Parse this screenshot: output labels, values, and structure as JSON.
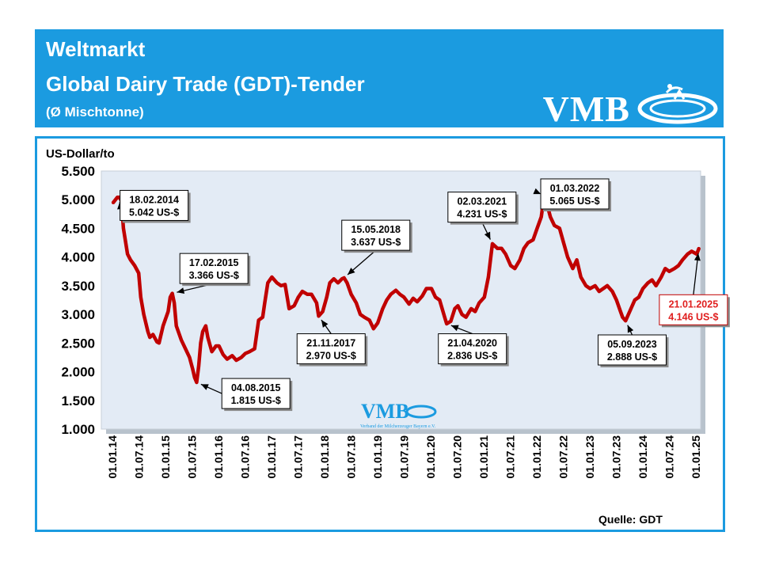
{
  "header": {
    "title_line1": "Weltmarkt",
    "title_line2": "Global Dairy Trade (GDT)-Tender",
    "subtitle": "(Ø Mischtonne)",
    "logo_text": "VMB",
    "bg_color": "#1b9be0"
  },
  "watermark": {
    "logo_text": "VMB",
    "caption": "Verband der Milcherzeuger Bayern e.V."
  },
  "source_note": "Quelle: GDT",
  "chart_data": {
    "type": "line",
    "title": "",
    "ylabel": "US-Dollar/to",
    "xlabel": "",
    "ylim": [
      1000,
      5500
    ],
    "xlim": [
      "2014-01-01",
      "2025-01-01"
    ],
    "grid": false,
    "line_color": "#c00000",
    "plot_bg": "#e3ebf5",
    "y_ticks": [
      "1.000",
      "1.500",
      "2.000",
      "2.500",
      "3.000",
      "3.500",
      "4.000",
      "4.500",
      "5.000",
      "5.500"
    ],
    "x_ticks": [
      "01.01.14",
      "01.07.14",
      "01.01.15",
      "01.07.15",
      "01.01.16",
      "01.07.16",
      "01.01.17",
      "01.07.17",
      "01.01.18",
      "01.07.18",
      "01.01.19",
      "01.07.19",
      "01.01.20",
      "01.07.20",
      "01.01.21",
      "01.07.21",
      "01.01.22",
      "01.07.22",
      "01.01.23",
      "01.07.23",
      "01.01.24",
      "01.07.24",
      "01.01.25"
    ],
    "series": [
      {
        "points": [
          [
            "2014-01-07",
            4950
          ],
          [
            "2014-02-04",
            5040
          ],
          [
            "2014-02-18",
            5042
          ],
          [
            "2014-03-04",
            4980
          ],
          [
            "2014-03-18",
            4500
          ],
          [
            "2014-04-15",
            4050
          ],
          [
            "2014-05-06",
            3950
          ],
          [
            "2014-06-03",
            3850
          ],
          [
            "2014-07-01",
            3720
          ],
          [
            "2014-07-15",
            3300
          ],
          [
            "2014-08-05",
            3000
          ],
          [
            "2014-09-02",
            2700
          ],
          [
            "2014-09-16",
            2600
          ],
          [
            "2014-10-07",
            2650
          ],
          [
            "2014-11-04",
            2520
          ],
          [
            "2014-11-18",
            2500
          ],
          [
            "2014-12-16",
            2800
          ],
          [
            "2015-01-20",
            3050
          ],
          [
            "2015-02-03",
            3300
          ],
          [
            "2015-02-17",
            3366
          ],
          [
            "2015-03-03",
            3200
          ],
          [
            "2015-03-17",
            2800
          ],
          [
            "2015-04-21",
            2550
          ],
          [
            "2015-05-19",
            2400
          ],
          [
            "2015-06-16",
            2250
          ],
          [
            "2015-07-07",
            2050
          ],
          [
            "2015-07-21",
            1900
          ],
          [
            "2015-08-04",
            1815
          ],
          [
            "2015-08-18",
            2100
          ],
          [
            "2015-09-01",
            2500
          ],
          [
            "2015-09-15",
            2700
          ],
          [
            "2015-10-06",
            2800
          ],
          [
            "2015-10-20",
            2600
          ],
          [
            "2015-11-17",
            2350
          ],
          [
            "2015-12-15",
            2450
          ],
          [
            "2016-01-05",
            2450
          ],
          [
            "2016-02-02",
            2300
          ],
          [
            "2016-03-01",
            2220
          ],
          [
            "2016-04-05",
            2280
          ],
          [
            "2016-05-03",
            2200
          ],
          [
            "2016-06-07",
            2250
          ],
          [
            "2016-07-05",
            2320
          ],
          [
            "2016-08-02",
            2350
          ],
          [
            "2016-09-06",
            2400
          ],
          [
            "2016-10-04",
            2900
          ],
          [
            "2016-11-01",
            2950
          ],
          [
            "2016-11-15",
            3200
          ],
          [
            "2016-12-06",
            3550
          ],
          [
            "2017-01-03",
            3650
          ],
          [
            "2017-02-07",
            3550
          ],
          [
            "2017-03-07",
            3500
          ],
          [
            "2017-04-04",
            3520
          ],
          [
            "2017-05-02",
            3100
          ],
          [
            "2017-06-06",
            3150
          ],
          [
            "2017-07-04",
            3300
          ],
          [
            "2017-08-01",
            3400
          ],
          [
            "2017-09-05",
            3350
          ],
          [
            "2017-10-03",
            3350
          ],
          [
            "2017-11-07",
            3200
          ],
          [
            "2017-11-21",
            2970
          ],
          [
            "2017-12-19",
            3050
          ],
          [
            "2018-01-16",
            3300
          ],
          [
            "2018-02-06",
            3550
          ],
          [
            "2018-03-06",
            3620
          ],
          [
            "2018-04-03",
            3550
          ],
          [
            "2018-05-01",
            3620
          ],
          [
            "2018-05-15",
            3637
          ],
          [
            "2018-06-05",
            3550
          ],
          [
            "2018-07-03",
            3350
          ],
          [
            "2018-08-07",
            3200
          ],
          [
            "2018-09-04",
            3000
          ],
          [
            "2018-10-02",
            2950
          ],
          [
            "2018-11-06",
            2900
          ],
          [
            "2018-12-04",
            2750
          ],
          [
            "2019-01-02",
            2850
          ],
          [
            "2019-02-05",
            3100
          ],
          [
            "2019-03-05",
            3250
          ],
          [
            "2019-04-02",
            3350
          ],
          [
            "2019-05-07",
            3420
          ],
          [
            "2019-06-04",
            3350
          ],
          [
            "2019-07-02",
            3300
          ],
          [
            "2019-08-06",
            3180
          ],
          [
            "2019-09-03",
            3280
          ],
          [
            "2019-10-01",
            3220
          ],
          [
            "2019-11-05",
            3320
          ],
          [
            "2019-12-03",
            3450
          ],
          [
            "2020-01-07",
            3450
          ],
          [
            "2020-02-04",
            3300
          ],
          [
            "2020-03-03",
            3250
          ],
          [
            "2020-04-07",
            2950
          ],
          [
            "2020-04-21",
            2836
          ],
          [
            "2020-05-19",
            2880
          ],
          [
            "2020-06-16",
            3100
          ],
          [
            "2020-07-07",
            3150
          ],
          [
            "2020-08-04",
            3000
          ],
          [
            "2020-09-01",
            2950
          ],
          [
            "2020-10-06",
            3100
          ],
          [
            "2020-11-03",
            3050
          ],
          [
            "2020-12-01",
            3200
          ],
          [
            "2021-01-05",
            3300
          ],
          [
            "2021-02-02",
            3650
          ],
          [
            "2021-02-16",
            3950
          ],
          [
            "2021-03-02",
            4231
          ],
          [
            "2021-04-06",
            4150
          ],
          [
            "2021-05-04",
            4150
          ],
          [
            "2021-06-01",
            4050
          ],
          [
            "2021-07-06",
            3850
          ],
          [
            "2021-08-03",
            3800
          ],
          [
            "2021-09-07",
            3950
          ],
          [
            "2021-10-05",
            4150
          ],
          [
            "2021-11-02",
            4250
          ],
          [
            "2021-12-07",
            4300
          ],
          [
            "2022-01-04",
            4500
          ],
          [
            "2022-02-01",
            4700
          ],
          [
            "2022-02-15",
            4950
          ],
          [
            "2022-03-01",
            5065
          ],
          [
            "2022-03-15",
            4900
          ],
          [
            "2022-04-05",
            4700
          ],
          [
            "2022-05-03",
            4550
          ],
          [
            "2022-06-07",
            4500
          ],
          [
            "2022-07-05",
            4250
          ],
          [
            "2022-08-02",
            4000
          ],
          [
            "2022-09-06",
            3800
          ],
          [
            "2022-10-04",
            3950
          ],
          [
            "2022-11-01",
            3650
          ],
          [
            "2022-12-06",
            3500
          ],
          [
            "2023-01-03",
            3450
          ],
          [
            "2023-02-07",
            3500
          ],
          [
            "2023-03-07",
            3400
          ],
          [
            "2023-04-04",
            3450
          ],
          [
            "2023-05-02",
            3500
          ],
          [
            "2023-06-06",
            3400
          ],
          [
            "2023-07-04",
            3250
          ],
          [
            "2023-08-01",
            3050
          ],
          [
            "2023-08-15",
            2950
          ],
          [
            "2023-09-05",
            2888
          ],
          [
            "2023-10-03",
            3050
          ],
          [
            "2023-11-07",
            3250
          ],
          [
            "2023-12-05",
            3300
          ],
          [
            "2024-01-02",
            3450
          ],
          [
            "2024-02-06",
            3550
          ],
          [
            "2024-03-05",
            3600
          ],
          [
            "2024-04-02",
            3500
          ],
          [
            "2024-05-07",
            3650
          ],
          [
            "2024-06-04",
            3800
          ],
          [
            "2024-07-02",
            3750
          ],
          [
            "2024-08-06",
            3800
          ],
          [
            "2024-09-03",
            3850
          ],
          [
            "2024-10-01",
            3950
          ],
          [
            "2024-11-05",
            4050
          ],
          [
            "2024-12-03",
            4100
          ],
          [
            "2025-01-07",
            4050
          ],
          [
            "2025-01-21",
            4146
          ]
        ]
      }
    ],
    "annotations": [
      {
        "date": "18.02.2014",
        "value": "5.042 US-$",
        "at": [
          "2014-02-18",
          5042
        ],
        "box_at": [
          "2014-10-15",
          4900
        ],
        "emphasis": false
      },
      {
        "date": "17.02.2015",
        "value": "3.366 US-$",
        "at": [
          "2015-02-17",
          3366
        ],
        "box_at": [
          "2015-12-01",
          3800
        ],
        "emphasis": false
      },
      {
        "date": "04.08.2015",
        "value": "1.815 US-$",
        "at": [
          "2015-08-04",
          1815
        ],
        "box_at": [
          "2016-09-15",
          1620
        ],
        "emphasis": false
      },
      {
        "date": "21.11.2017",
        "value": "2.970 US-$",
        "at": [
          "2017-11-21",
          2970
        ],
        "box_at": [
          "2018-02-15",
          2400
        ],
        "emphasis": false
      },
      {
        "date": "15.05.2018",
        "value": "3.637 US-$",
        "at": [
          "2018-05-15",
          3637
        ],
        "box_at": [
          "2018-12-20",
          4380
        ],
        "emphasis": false
      },
      {
        "date": "21.04.2020",
        "value": "2.836 US-$",
        "at": [
          "2020-04-21",
          2836
        ],
        "box_at": [
          "2020-10-15",
          2400
        ],
        "emphasis": false
      },
      {
        "date": "02.03.2021",
        "value": "4.231 US-$",
        "at": [
          "2021-03-02",
          4231
        ],
        "box_at": [
          "2020-12-20",
          4870
        ],
        "emphasis": false
      },
      {
        "date": "01.03.2022",
        "value": "5.065 US-$",
        "at": [
          "2022-03-01",
          5065
        ],
        "box_at": [
          "2022-09-20",
          5100
        ],
        "emphasis": false
      },
      {
        "date": "05.09.2023",
        "value": "2.888 US-$",
        "at": [
          "2023-09-05",
          2888
        ],
        "box_at": [
          "2023-10-20",
          2380
        ],
        "emphasis": false
      },
      {
        "date": "21.01.2025",
        "value": "4.146 US-$",
        "at": [
          "2025-01-21",
          4146
        ],
        "box_at": [
          "2024-12-15",
          3080
        ],
        "emphasis": true
      }
    ]
  }
}
